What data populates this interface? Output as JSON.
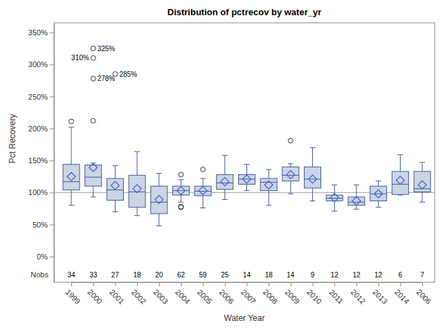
{
  "chart_data": {
    "type": "box",
    "title": "Distribution of pctrecov by water_yr",
    "x_label": "Water Year",
    "y_label": "Pct Recovery",
    "categories": [
      "1999",
      "2000",
      "2001",
      "2002",
      "2003",
      "2004",
      "2005",
      "2006",
      "2007",
      "2008",
      "2009",
      "2010",
      "2011",
      "2012",
      "2013",
      "2014",
      "2006"
    ],
    "whisker_low": [
      80,
      93,
      70,
      64,
      48,
      85,
      76,
      89,
      103,
      80,
      98,
      87,
      71,
      74,
      77,
      96,
      85
    ],
    "q1": [
      104,
      110,
      88,
      77,
      67,
      96,
      95,
      105,
      113,
      103,
      118,
      107,
      87,
      80,
      87,
      97,
      101
    ],
    "median": [
      117,
      124,
      104,
      101,
      85,
      103,
      102,
      115,
      121,
      116,
      127,
      121,
      91,
      85,
      98,
      113,
      106
    ],
    "mean": [
      125,
      139,
      111,
      106,
      89,
      103,
      103,
      117,
      121,
      112,
      128,
      121,
      92,
      87,
      98,
      119,
      112
    ],
    "q3": [
      144,
      143,
      122,
      127,
      110,
      110,
      110,
      128,
      128,
      122,
      140,
      140,
      96,
      93,
      110,
      133,
      133
    ],
    "whisker_high": [
      202,
      146,
      142,
      164,
      130,
      120,
      122,
      158,
      144,
      136,
      145,
      170,
      112,
      112,
      118,
      159,
      147
    ],
    "outliers": [
      [
        211
      ],
      [
        212,
        278,
        310,
        325
      ],
      [
        285
      ],
      [],
      [],
      [
        128,
        78,
        77
      ],
      [
        136
      ],
      [],
      [],
      [],
      [
        181
      ],
      [],
      [],
      [],
      [],
      [],
      []
    ],
    "outlier_labels": [
      [
        null
      ],
      [
        null,
        "278%",
        "310%",
        "325%"
      ],
      [
        "285%"
      ],
      [],
      [],
      [
        null,
        null,
        null
      ],
      [
        null
      ],
      [],
      [],
      [],
      [
        null
      ],
      [],
      [],
      [],
      [],
      [],
      []
    ],
    "nobs_label": "Nobs",
    "nobs": [
      34,
      33,
      27,
      18,
      20,
      62,
      59,
      25,
      14,
      18,
      14,
      9,
      12,
      12,
      12,
      6,
      7
    ],
    "reference_line": 100,
    "color": "#cad5e5",
    "marker": "diamond",
    "ylim": [
      -40,
      365
    ],
    "yticks": [
      {
        "value": 0,
        "label": "0%"
      },
      {
        "value": 50,
        "label": "50%"
      },
      {
        "value": 100,
        "label": "100%"
      },
      {
        "value": 150,
        "label": "150%"
      },
      {
        "value": 200,
        "label": "200%"
      },
      {
        "value": 250,
        "label": "250%"
      },
      {
        "value": 300,
        "label": "300%"
      },
      {
        "value": 350,
        "label": "350%"
      }
    ]
  }
}
